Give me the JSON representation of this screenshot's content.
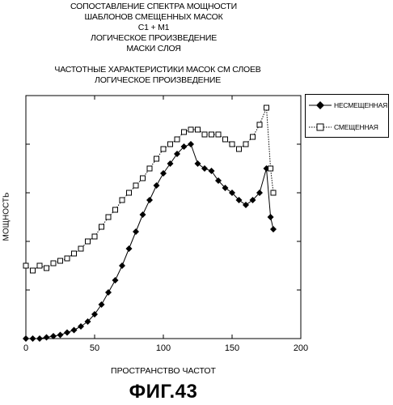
{
  "header": {
    "line1": "СОПОСТАВЛЕНИЕ СПЕКТРА МОЩНОСТИ",
    "line2": "ШАБЛОНОВ СМЕЩЕННЫХ МАСОК",
    "line3": "C1 + M1",
    "line4": "ЛОГИЧЕСКОЕ ПРОИЗВЕДЕНИЕ",
    "line5": "МАСКИ СЛОЯ",
    "line6": "ЧАСТОТНЫЕ ХАРАКТЕРИСТИКИ МАСОК СМ СЛОЕВ",
    "line7": "ЛОГИЧЕСКОЕ ПРОИЗВЕДЕНИЕ"
  },
  "figure_label": "ФИГ.43",
  "chart_data": {
    "type": "line",
    "xlabel": "ПРОСТРАНСТВО ЧАСТОТ",
    "ylabel": "МОЩНОСТЬ",
    "xlim": [
      0,
      200
    ],
    "ylim": [
      0,
      1
    ],
    "xticks": [
      0,
      50,
      100,
      150,
      200
    ],
    "yticks": [
      0,
      0.2,
      0.4,
      0.6,
      0.8,
      1.0
    ],
    "ytick_labels_shown": false,
    "grid": false,
    "legend_position": "top-right-outside",
    "series": [
      {
        "name": "НЕСМЕЩЕННАЯ",
        "marker": "filled-diamond",
        "line": "solid",
        "color": "#000000",
        "x": [
          0,
          5,
          10,
          15,
          20,
          25,
          30,
          35,
          40,
          45,
          50,
          55,
          60,
          65,
          70,
          75,
          80,
          85,
          90,
          95,
          100,
          105,
          110,
          115,
          120,
          125,
          130,
          135,
          140,
          145,
          150,
          155,
          160,
          165,
          170,
          175,
          178,
          180
        ],
        "y": [
          0.0,
          0.0,
          0.0,
          0.005,
          0.01,
          0.015,
          0.025,
          0.035,
          0.05,
          0.07,
          0.1,
          0.14,
          0.19,
          0.24,
          0.3,
          0.37,
          0.44,
          0.51,
          0.57,
          0.63,
          0.68,
          0.72,
          0.76,
          0.79,
          0.8,
          0.72,
          0.7,
          0.69,
          0.65,
          0.62,
          0.6,
          0.57,
          0.55,
          0.57,
          0.6,
          0.7,
          0.5,
          0.45
        ]
      },
      {
        "name": "СМЕЩЕННАЯ",
        "marker": "open-square",
        "line": "dotted",
        "color": "#000000",
        "x": [
          0,
          5,
          10,
          15,
          20,
          25,
          30,
          35,
          40,
          45,
          50,
          55,
          60,
          65,
          70,
          75,
          80,
          85,
          90,
          95,
          100,
          105,
          110,
          115,
          120,
          125,
          130,
          135,
          140,
          145,
          150,
          155,
          160,
          165,
          170,
          175,
          178,
          180
        ],
        "y": [
          0.3,
          0.28,
          0.3,
          0.29,
          0.31,
          0.32,
          0.33,
          0.35,
          0.37,
          0.4,
          0.42,
          0.46,
          0.5,
          0.53,
          0.57,
          0.6,
          0.63,
          0.66,
          0.7,
          0.74,
          0.78,
          0.8,
          0.82,
          0.85,
          0.86,
          0.86,
          0.84,
          0.84,
          0.84,
          0.82,
          0.8,
          0.78,
          0.8,
          0.83,
          0.88,
          0.95,
          0.7,
          0.6
        ]
      }
    ]
  }
}
